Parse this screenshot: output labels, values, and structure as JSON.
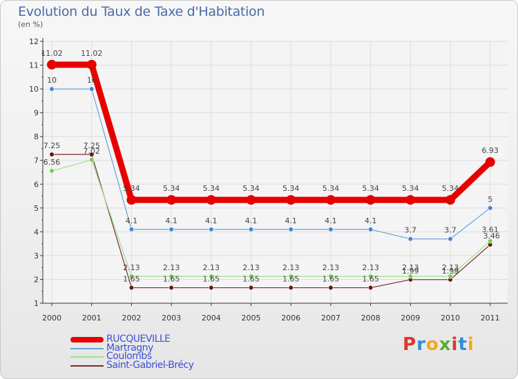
{
  "title": "Evolution du Taux de Taxe d'Habitation",
  "unit_label": "(en %)",
  "brand": {
    "text": "Proxiti",
    "letter_colors": [
      "#e0362c",
      "#2e8fd6",
      "#f2a81d",
      "#5ab030",
      "#e0362c",
      "#2e8fd6",
      "#f2a81d"
    ]
  },
  "chart_data": {
    "type": "line",
    "title": "Evolution du Taux de Taxe d'Habitation",
    "ylabel": "(en %)",
    "xlabel": "",
    "x": [
      "2000",
      "2001",
      "2002",
      "2003",
      "2004",
      "2005",
      "2006",
      "2007",
      "2008",
      "2009",
      "2010",
      "2011"
    ],
    "ylim": [
      1,
      12
    ],
    "yticks": [
      "1",
      "2",
      "3",
      "4",
      "5",
      "6",
      "7",
      "8",
      "9",
      "10",
      "11",
      "12"
    ],
    "grid": true,
    "legend": "bottom-left",
    "series": [
      {
        "name": "RUCQUEVILLE",
        "color": "#e60000",
        "values": [
          11.02,
          11.02,
          5.34,
          5.34,
          5.34,
          5.34,
          5.34,
          5.34,
          5.34,
          5.34,
          5.34,
          6.93
        ],
        "labels": [
          "11.02",
          "11.02",
          "5.34",
          "5.34",
          "5.34",
          "5.34",
          "5.34",
          "5.34",
          "5.34",
          "5.34",
          "5.34",
          "6.93"
        ]
      },
      {
        "name": "Martragny",
        "color": "#6aa2d6",
        "point_color": "#3f87d4",
        "values": [
          10,
          10,
          4.1,
          4.1,
          4.1,
          4.1,
          4.1,
          4.1,
          4.1,
          3.7,
          3.7,
          5
        ],
        "labels": [
          "10",
          "10",
          "4.1",
          "4.1",
          "4.1",
          "4.1",
          "4.1",
          "4.1",
          "4.1",
          "3.7",
          "3.7",
          "5"
        ]
      },
      {
        "name": "Coulombs",
        "color": "#9ee08a",
        "point_color": "#6fd24a",
        "values": [
          6.56,
          7.02,
          2.13,
          2.13,
          2.13,
          2.13,
          2.13,
          2.13,
          2.13,
          2.13,
          2.13,
          3.61
        ],
        "labels": [
          "6.56",
          "7.02",
          "2.13",
          "2.13",
          "2.13",
          "2.13",
          "2.13",
          "2.13",
          "2.13",
          "2.13",
          "2.13",
          "3.61"
        ]
      },
      {
        "name": "Saint-Gabriel-Brécy",
        "color": "#7a2a2a",
        "point_color": "#6b1515",
        "values": [
          7.25,
          7.25,
          1.65,
          1.65,
          1.65,
          1.65,
          1.65,
          1.65,
          1.65,
          1.99,
          1.99,
          3.46
        ],
        "labels": [
          "7.25",
          "7.25",
          "1.65",
          "1.65",
          "1.65",
          "1.65",
          "1.65",
          "1.65",
          "1.65",
          "1.99",
          "1.99",
          "3.46"
        ]
      }
    ]
  }
}
